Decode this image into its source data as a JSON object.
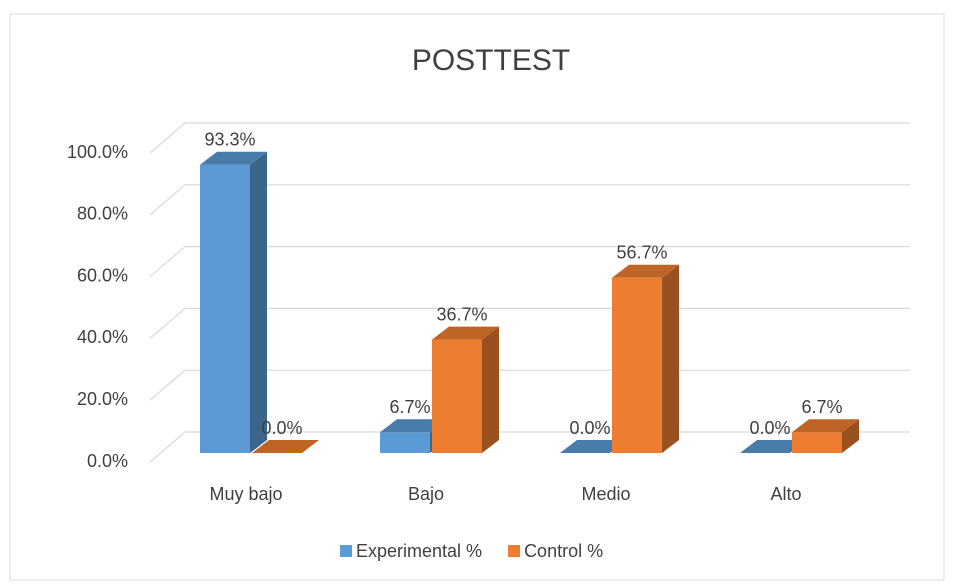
{
  "chart_data": {
    "type": "bar3d",
    "title": "POSTTEST",
    "categories": [
      "Muy bajo",
      "Bajo",
      "Medio",
      "Alto"
    ],
    "series": [
      {
        "name": "Experimental %",
        "color": "#5b9bd5",
        "values": [
          93.3,
          6.7,
          0.0,
          0.0
        ],
        "value_labels": [
          "93.3%",
          "6.7%",
          "0.0%",
          "0.0%"
        ]
      },
      {
        "name": "Control %",
        "color": "#ed7d31",
        "values": [
          0.0,
          36.7,
          56.7,
          6.7
        ],
        "value_labels": [
          "0.0%",
          "36.7%",
          "56.7%",
          "6.7%"
        ]
      }
    ],
    "ylim": [
      0,
      100
    ],
    "yticks": [
      {
        "value": 0,
        "label": "0.0%"
      },
      {
        "value": 20,
        "label": "20.0%"
      },
      {
        "value": 40,
        "label": "40.0%"
      },
      {
        "value": 60,
        "label": "60.0%"
      },
      {
        "value": 80,
        "label": "80.0%"
      },
      {
        "value": 100,
        "label": "100.0%"
      }
    ],
    "grid": true,
    "legend": "bottom"
  }
}
